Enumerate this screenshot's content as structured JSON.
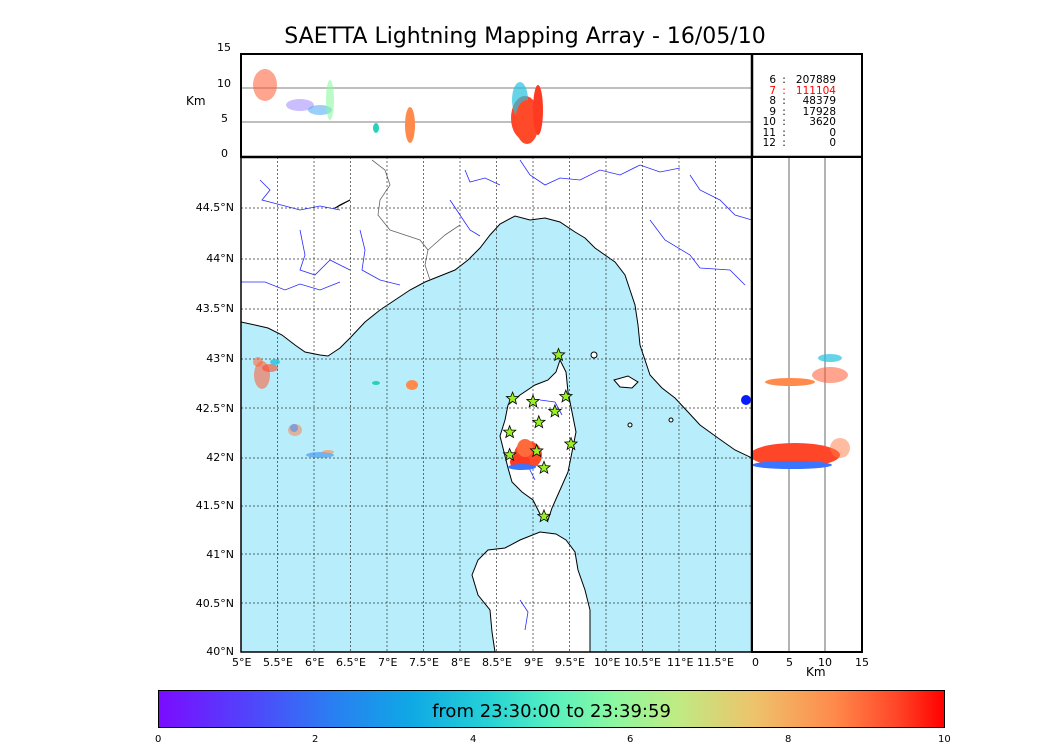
{
  "title": "SAETTA Lightning Mapping Array - 16/05/10",
  "top_panel": {
    "ylabel": "Km",
    "yticks": [
      "0",
      "5",
      "10",
      "15"
    ]
  },
  "side_panel": {
    "xlabel": "Km",
    "xticks": [
      "0",
      "5",
      "10",
      "15"
    ]
  },
  "map": {
    "lat_ticks": [
      "40°N",
      "40.5°N",
      "41°N",
      "41.5°N",
      "42°N",
      "42.5°N",
      "43°N",
      "43.5°N",
      "44°N",
      "44.5°N"
    ],
    "lon_ticks": [
      "5°E",
      "5.5°E",
      "6°E",
      "6.5°E",
      "7°E",
      "7.5°E",
      "8°E",
      "8.5°E",
      "9°E",
      "9.5°E",
      "10°E",
      "10.5°E",
      "11°E",
      "11.5°E"
    ],
    "sea_color": "#b8eefb",
    "land_color": "#ffffff",
    "river_color": "#2a2aff",
    "station_color": "#99f023",
    "station_icon": "star-icon",
    "stations": [
      {
        "lon": 9.35,
        "lat": 43.0
      },
      {
        "lon": 8.72,
        "lat": 42.56
      },
      {
        "lon": 9.0,
        "lat": 42.53
      },
      {
        "lon": 9.45,
        "lat": 42.58
      },
      {
        "lon": 9.3,
        "lat": 42.43
      },
      {
        "lon": 9.08,
        "lat": 42.32
      },
      {
        "lon": 8.68,
        "lat": 42.22
      },
      {
        "lon": 9.52,
        "lat": 42.1
      },
      {
        "lon": 8.68,
        "lat": 41.99
      },
      {
        "lon": 9.05,
        "lat": 42.03
      },
      {
        "lon": 9.15,
        "lat": 41.86
      },
      {
        "lon": 9.15,
        "lat": 41.37
      }
    ]
  },
  "counts": [
    {
      "label": "6",
      "value": "207889",
      "color": "#000000"
    },
    {
      "label": "7",
      "value": "111104",
      "color": "#ff0000"
    },
    {
      "label": "8",
      "value": "48379",
      "color": "#000000"
    },
    {
      "label": "9",
      "value": "17928",
      "color": "#000000"
    },
    {
      "label": "10",
      "value": "3620",
      "color": "#000000"
    },
    {
      "label": "11",
      "value": "0",
      "color": "#000000"
    },
    {
      "label": "12",
      "value": "0",
      "color": "#000000"
    }
  ],
  "colorbar": {
    "text": "from 23:30:00 to 23:39:59",
    "ticks": [
      "0",
      "2",
      "4",
      "6",
      "8",
      "10"
    ]
  }
}
